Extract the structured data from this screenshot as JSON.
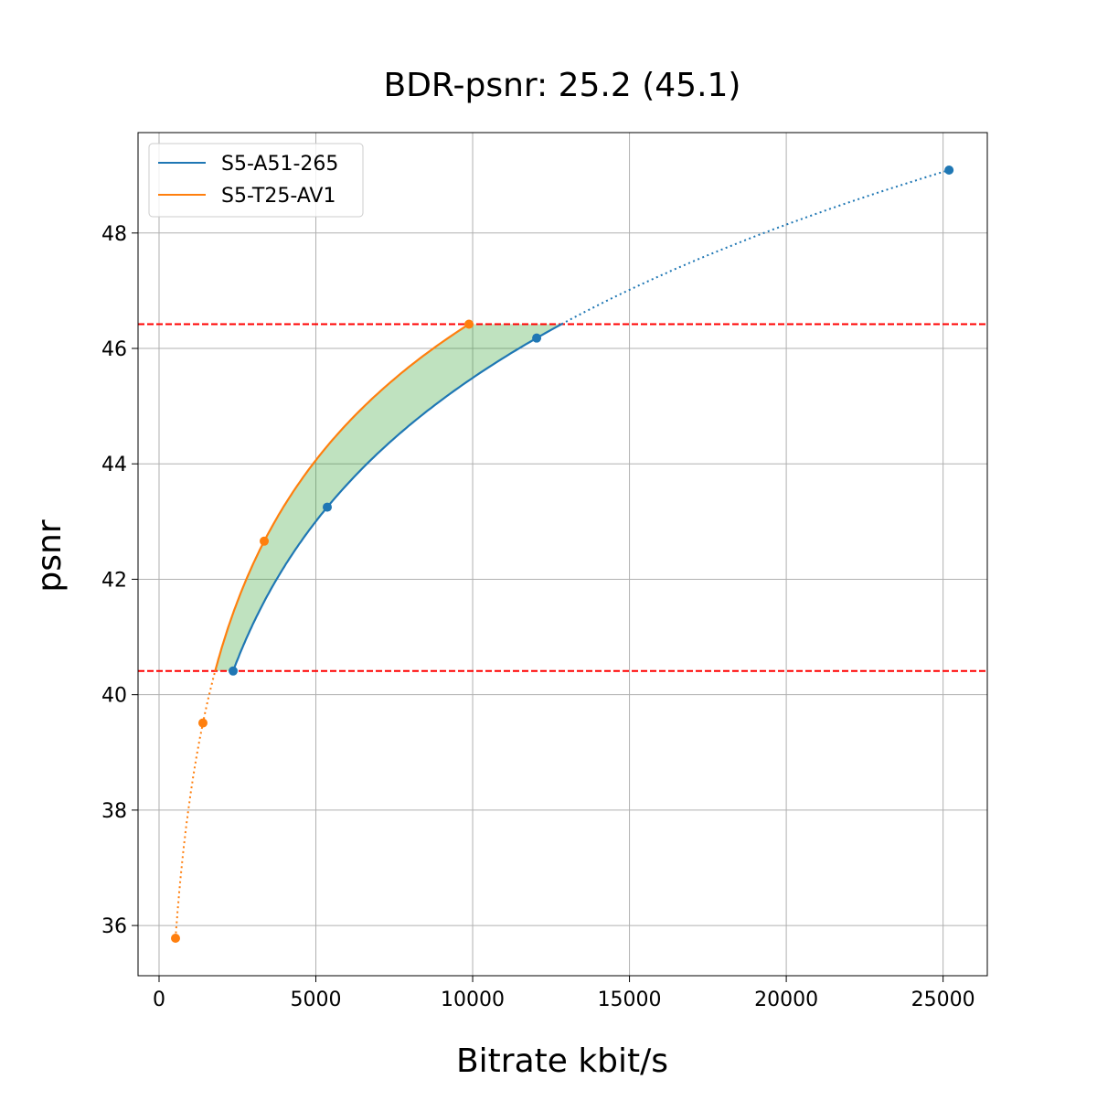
{
  "chart_data": {
    "type": "line",
    "title": "BDR-psnr: 25.2 (45.1)",
    "xlabel": "Bitrate kbit/s",
    "ylabel": "psnr",
    "xlim": [
      -670,
      26410
    ],
    "ylim": [
      35.13,
      49.74
    ],
    "xticks": [
      0,
      5000,
      10000,
      15000,
      20000,
      25000
    ],
    "yticks": [
      36,
      38,
      40,
      42,
      44,
      46,
      48
    ],
    "grid": true,
    "legend_position": "top-left",
    "series": [
      {
        "name": "S5-A51-265",
        "color": "#1f77b4",
        "x": [
          2362,
          5364,
          12041,
          25190
        ],
        "y": [
          40.41,
          43.25,
          46.18,
          49.09
        ]
      },
      {
        "name": "S5-T25-AV1",
        "color": "#ff7f0e",
        "x": [
          525,
          1399,
          3353,
          9883
        ],
        "y": [
          35.78,
          39.51,
          42.66,
          46.42
        ]
      }
    ],
    "hlines": {
      "values": [
        40.41,
        46.42
      ],
      "color": "#ff0000",
      "style": "dashed"
    },
    "fill_between": {
      "color": "#2ca02c",
      "range": [
        40.41,
        46.42
      ]
    }
  }
}
